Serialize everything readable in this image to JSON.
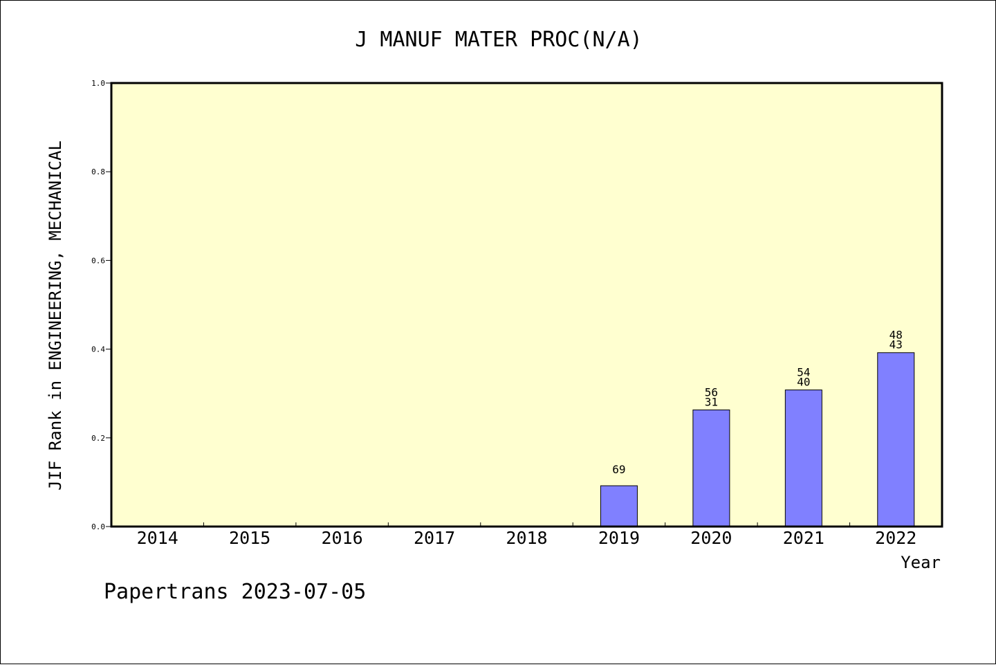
{
  "chart_data": {
    "type": "bar",
    "title": "J MANUF MATER PROC(N/A)",
    "xlabel": "Year",
    "ylabel": "JIF Rank in ENGINEERING, MECHANICAL",
    "ylim": [
      0,
      1.0
    ],
    "yticks": [
      "0.0",
      "0.2",
      "0.4",
      "0.6",
      "0.8",
      "1.0"
    ],
    "categories": [
      "2014",
      "2015",
      "2016",
      "2017",
      "2018",
      "2019",
      "2020",
      "2021",
      "2022"
    ],
    "values": [
      null,
      null,
      null,
      null,
      null,
      0.092,
      0.263,
      0.308,
      0.392
    ],
    "rank_labels": [
      [],
      [],
      [],
      [],
      [],
      [
        "69"
      ],
      [
        "56",
        "31"
      ],
      [
        "54",
        "40"
      ],
      [
        "48",
        "43"
      ]
    ],
    "grid": false,
    "colors": {
      "bar": "#8080ff",
      "plot_bg": "#ffffd0",
      "axis": "#000000"
    }
  },
  "footer": "Papertrans 2023-07-05"
}
